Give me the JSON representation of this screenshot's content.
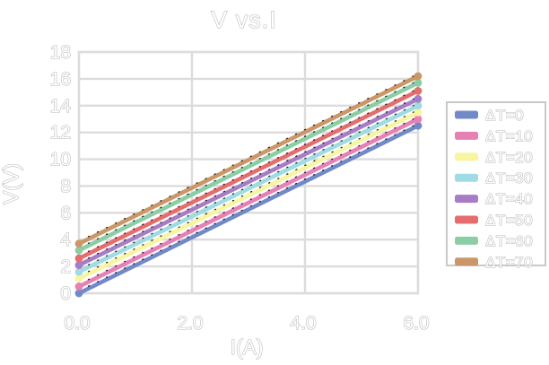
{
  "chart_data": {
    "type": "line",
    "title": "V vs.I",
    "xlabel": "I(A)",
    "ylabel": "V(V)",
    "xlim": [
      0,
      6
    ],
    "ylim": [
      0,
      18
    ],
    "x_tick_values": [
      0,
      2,
      4,
      6
    ],
    "x_tick_labels": [
      "0.0",
      "2.0",
      "4.0",
      "6.0"
    ],
    "y_tick_values": [
      0,
      2,
      4,
      6,
      8,
      10,
      12,
      14,
      16,
      18
    ],
    "y_tick_labels": [
      "0",
      "2",
      "4",
      "6",
      "8",
      "10",
      "12",
      "14",
      "16",
      "18"
    ],
    "grid": true,
    "legend_position": "right-box",
    "series": [
      {
        "name": "ΔT=0",
        "color": "#7289c7",
        "x": [
          0,
          6
        ],
        "y": [
          0.0,
          12.5
        ]
      },
      {
        "name": "ΔT=10",
        "color": "#e780b5",
        "x": [
          0,
          6
        ],
        "y": [
          0.5,
          13.0
        ]
      },
      {
        "name": "ΔT=20",
        "color": "#f8f5a0",
        "x": [
          0,
          6
        ],
        "y": [
          1.1,
          13.5
        ]
      },
      {
        "name": "ΔT=30",
        "color": "#9fdbe2",
        "x": [
          0,
          6
        ],
        "y": [
          1.6,
          14.0
        ]
      },
      {
        "name": "ΔT=40",
        "color": "#a77cc4",
        "x": [
          0,
          6
        ],
        "y": [
          2.1,
          14.5
        ]
      },
      {
        "name": "ΔT=50",
        "color": "#e66d6d",
        "x": [
          0,
          6
        ],
        "y": [
          2.6,
          15.1
        ]
      },
      {
        "name": "ΔT=60",
        "color": "#8bcda4",
        "x": [
          0,
          6
        ],
        "y": [
          3.2,
          15.7
        ]
      },
      {
        "name": "ΔT=70",
        "color": "#cc9768",
        "x": [
          0,
          6
        ],
        "y": [
          3.7,
          16.2
        ]
      }
    ],
    "annotations": "each series has a thin dashed black linear trendline overlapping the colored line, round markers at both endpoints"
  },
  "style": {
    "background": "#ffffff",
    "grid_color": "#dcdcdc",
    "legend_border_color": "#c9c9c9",
    "text_fill": "#ffffff",
    "text_outline": "#b6b6b6",
    "trendline_color": "#1a1a1a"
  }
}
